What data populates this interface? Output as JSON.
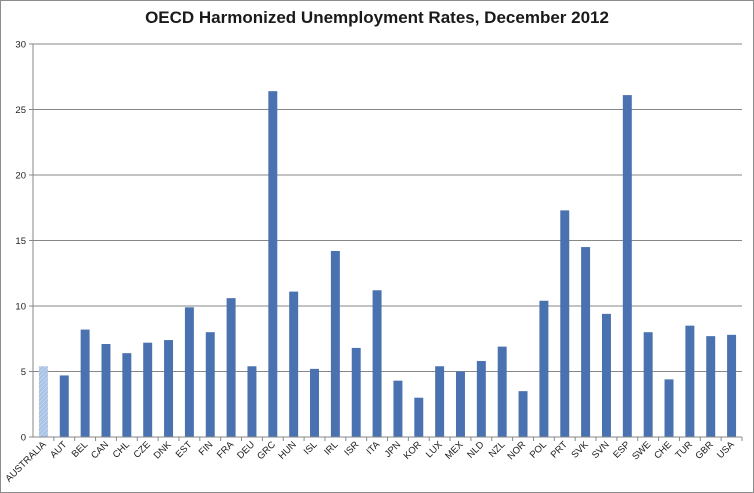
{
  "chart_data": {
    "type": "bar",
    "title": "OECD Harmonized Unemployment Rates, December 2012",
    "xlabel": "",
    "ylabel": "",
    "ylim": [
      0,
      30
    ],
    "yticks": [
      0,
      5,
      10,
      15,
      20,
      25,
      30
    ],
    "grid": "horizontal",
    "legend": "none",
    "colors": {
      "bar": "#4a72b0",
      "highlight": "#a9c3e6",
      "grid": "#878787",
      "axis": "#878787"
    },
    "highlight_category": "AUSTRALIA",
    "categories": [
      "AUSTRALIA",
      "AUT",
      "BEL",
      "CAN",
      "CHL",
      "CZE",
      "DNK",
      "EST",
      "FIN",
      "FRA",
      "DEU",
      "GRC",
      "HUN",
      "ISL",
      "IRL",
      "ISR",
      "ITA",
      "JPN",
      "KOR",
      "LUX",
      "MEX",
      "NLD",
      "NZL",
      "NOR",
      "POL",
      "PRT",
      "SVK",
      "SVN",
      "ESP",
      "SWE",
      "CHE",
      "TUR",
      "GBR",
      "USA"
    ],
    "values": [
      5.4,
      4.7,
      8.2,
      7.1,
      6.4,
      7.2,
      7.4,
      9.9,
      8.0,
      10.6,
      5.4,
      26.4,
      11.1,
      5.2,
      14.2,
      6.8,
      11.2,
      4.3,
      3.0,
      5.4,
      5.0,
      5.8,
      6.9,
      3.5,
      10.4,
      17.3,
      14.5,
      9.4,
      26.1,
      8.0,
      4.4,
      8.5,
      7.7,
      7.8
    ]
  }
}
